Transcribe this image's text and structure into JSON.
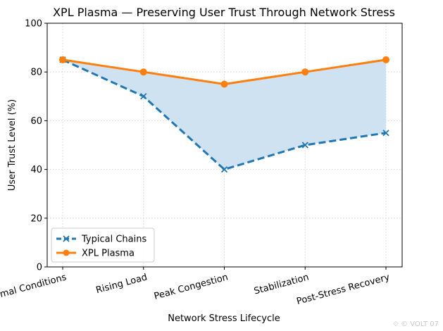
{
  "chart_data": {
    "type": "line",
    "title": "XPL Plasma — Preserving User Trust Through Network Stress",
    "xlabel": "Network Stress Lifecycle",
    "ylabel": "User Trust Level (%)",
    "categories": [
      "Normal Conditions",
      "Rising Load",
      "Peak Congestion",
      "Stabilization",
      "Post-Stress Recovery"
    ],
    "ylim": [
      0,
      100
    ],
    "yticks": [
      0,
      20,
      40,
      60,
      80,
      100
    ],
    "grid": true,
    "legend_position": "lower-left",
    "fill_between": {
      "series_a": "Typical Chains",
      "series_b": "XPL Plasma",
      "color": "#cfe2f1"
    },
    "series": [
      {
        "name": "Typical Chains",
        "values": [
          85,
          70,
          40,
          50,
          55
        ],
        "color": "#1f77b4",
        "linestyle": "dashed",
        "marker": "x"
      },
      {
        "name": "XPL Plasma",
        "values": [
          85,
          80,
          75,
          80,
          85
        ],
        "color": "#ff7f0e",
        "linestyle": "solid",
        "marker": "circle"
      }
    ]
  },
  "watermark": {
    "text": "© VOLT 07"
  }
}
